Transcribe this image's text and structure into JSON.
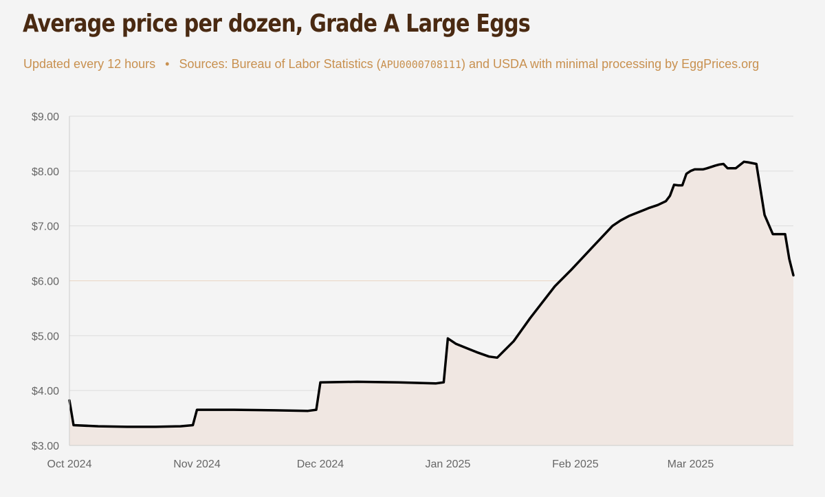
{
  "page": {
    "title": "Average price per dozen, Grade A Large Eggs",
    "subtitle": {
      "update_text": "Updated every 12 hours",
      "separator": "•",
      "sources_prefix": "Sources: Bureau of Labor Statistics (",
      "series_code": "APU0000708111",
      "sources_suffix": ") and USDA with minimal processing by EggPrices.org"
    }
  },
  "colors": {
    "title": "#4a2a12",
    "subtitle": "#c8904f",
    "line": "#000000",
    "area_fill": "#f0e7e2",
    "grid": "#dcdcdc",
    "grid_highlight": "#ead5c4",
    "axis": "#cccccc",
    "tick_text": "#666666"
  },
  "chart_data": {
    "type": "area",
    "title": "Average price per dozen, Grade A Large Eggs",
    "xlabel": "",
    "ylabel": "",
    "ylim": [
      3,
      9
    ],
    "xlim": [
      "2024-10-01",
      "2025-03-26"
    ],
    "grid": true,
    "legend": "none",
    "y_ticks": [
      {
        "value": 9,
        "label": "$9.00"
      },
      {
        "value": 8,
        "label": "$8.00"
      },
      {
        "value": 7,
        "label": "$7.00"
      },
      {
        "value": 6,
        "label": "$6.00"
      },
      {
        "value": 5,
        "label": "$5.00"
      },
      {
        "value": 4,
        "label": "$4.00"
      },
      {
        "value": 3,
        "label": "$3.00"
      }
    ],
    "x_ticks": [
      {
        "date": "2024-10-01",
        "label": "Oct 2024"
      },
      {
        "date": "2024-11-01",
        "label": "Nov 2024"
      },
      {
        "date": "2024-12-01",
        "label": "Dec 2024"
      },
      {
        "date": "2025-01-01",
        "label": "Jan 2025"
      },
      {
        "date": "2025-02-01",
        "label": "Feb 2025"
      },
      {
        "date": "2025-03-01",
        "label": "Mar 2025"
      }
    ],
    "series": [
      {
        "x": [
          "2024-10-01",
          "2024-10-02",
          "2024-10-08",
          "2024-10-15",
          "2024-10-22",
          "2024-10-28",
          "2024-10-31",
          "2024-11-01",
          "2024-11-10",
          "2024-11-20",
          "2024-11-28",
          "2024-11-30",
          "2024-12-01",
          "2024-12-10",
          "2024-12-20",
          "2024-12-29",
          "2024-12-31",
          "2025-01-01",
          "2025-01-03",
          "2025-01-08",
          "2025-01-11",
          "2025-01-13",
          "2025-01-17",
          "2025-01-21",
          "2025-01-27",
          "2025-01-31",
          "2025-02-05",
          "2025-02-10",
          "2025-02-12",
          "2025-02-14",
          "2025-02-16",
          "2025-02-18",
          "2025-02-19",
          "2025-02-21",
          "2025-02-23",
          "2025-02-24",
          "2025-02-25",
          "2025-02-26",
          "2025-02-27",
          "2025-02-28",
          "2025-03-01",
          "2025-03-02",
          "2025-03-03",
          "2025-03-04",
          "2025-03-05",
          "2025-03-07",
          "2025-03-08",
          "2025-03-09",
          "2025-03-10",
          "2025-03-11",
          "2025-03-12",
          "2025-03-14",
          "2025-03-15",
          "2025-03-17",
          "2025-03-19",
          "2025-03-21",
          "2025-03-24",
          "2025-03-25",
          "2025-03-26"
        ],
        "values": [
          3.82,
          3.37,
          3.35,
          3.34,
          3.34,
          3.35,
          3.37,
          3.65,
          3.65,
          3.64,
          3.63,
          3.65,
          4.15,
          4.16,
          4.15,
          4.13,
          4.15,
          4.95,
          4.85,
          4.7,
          4.62,
          4.6,
          4.9,
          5.32,
          5.9,
          6.2,
          6.6,
          7.0,
          7.1,
          7.18,
          7.24,
          7.3,
          7.33,
          7.38,
          7.45,
          7.55,
          7.75,
          7.74,
          7.74,
          7.95,
          8.0,
          8.03,
          8.03,
          8.03,
          8.05,
          8.1,
          8.12,
          8.13,
          8.05,
          8.05,
          8.05,
          8.17,
          8.16,
          8.13,
          7.2,
          6.85,
          6.85,
          6.4,
          6.1
        ]
      }
    ]
  }
}
